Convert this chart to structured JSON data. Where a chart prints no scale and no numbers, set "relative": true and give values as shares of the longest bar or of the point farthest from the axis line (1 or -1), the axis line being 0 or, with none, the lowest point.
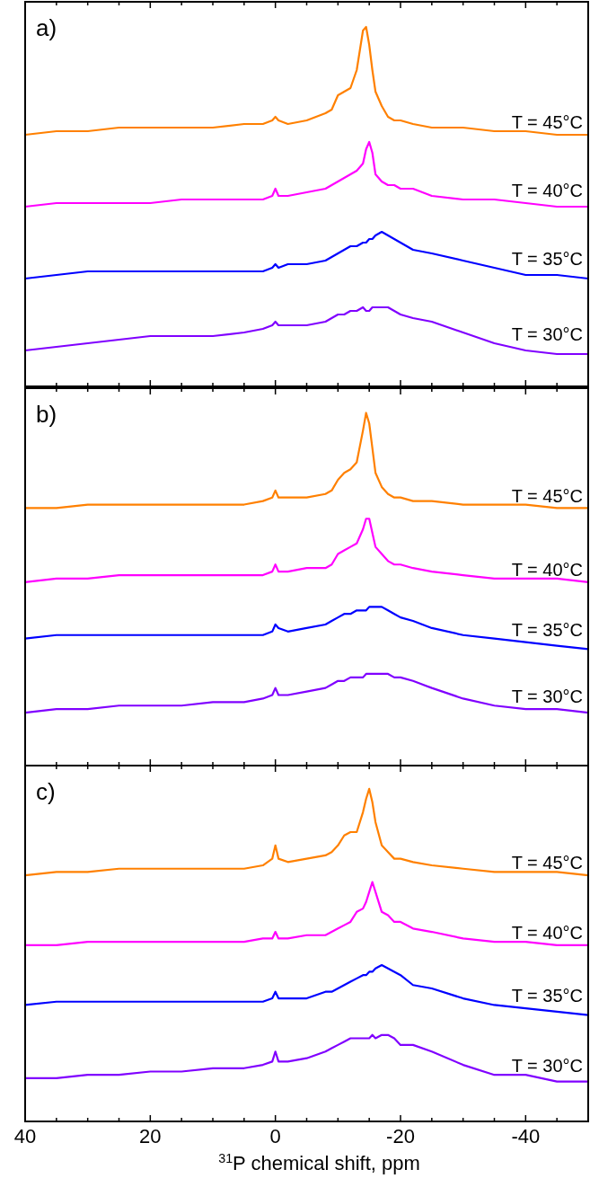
{
  "chart_data": [
    {
      "type": "line",
      "title": "a)",
      "relative": true,
      "tick_labels": false,
      "xlim": [
        40,
        -50
      ],
      "xticks": [
        40,
        {
          "value": 35,
          "label": null
        },
        {
          "value": 30,
          "label": null
        },
        {
          "value": 25,
          "label": null
        },
        20,
        {
          "value": 15,
          "label": null
        },
        {
          "value": 10,
          "label": null
        },
        {
          "value": 5,
          "label": null
        },
        0,
        {
          "value": -5,
          "label": null
        },
        {
          "value": -10,
          "label": null
        },
        {
          "value": -15,
          "label": null
        },
        -20,
        {
          "value": -25,
          "label": null
        },
        {
          "value": -30,
          "label": null
        },
        {
          "value": -35,
          "label": null
        },
        -40,
        {
          "value": -45,
          "label": null
        }
      ],
      "x": [
        40,
        35,
        30,
        25,
        20,
        15,
        10,
        5,
        2,
        0.5,
        0,
        -0.5,
        -2,
        -5,
        -8,
        -9,
        -10,
        -11,
        -12,
        -13,
        -14,
        -14.5,
        -15,
        -15.5,
        -16,
        -17,
        -18,
        -19,
        -20,
        -22,
        -25,
        -30,
        -35,
        -40,
        -45,
        -50
      ],
      "series": [
        {
          "name": "T = 45°C",
          "color": "#ff8000",
          "values": [
            0.7,
            0.71,
            0.71,
            0.72,
            0.72,
            0.72,
            0.72,
            0.73,
            0.73,
            0.74,
            0.75,
            0.74,
            0.73,
            0.74,
            0.76,
            0.77,
            0.81,
            0.82,
            0.83,
            0.88,
            0.99,
            1,
            0.95,
            0.88,
            0.82,
            0.78,
            0.75,
            0.74,
            0.74,
            0.73,
            0.72,
            0.72,
            0.71,
            0.71,
            0.7,
            0.7
          ]
        },
        {
          "name": "T = 40°C",
          "color": "#ff00ff",
          "values": [
            0.5,
            0.51,
            0.51,
            0.51,
            0.51,
            0.52,
            0.52,
            0.52,
            0.52,
            0.53,
            0.55,
            0.53,
            0.53,
            0.54,
            0.55,
            0.56,
            0.57,
            0.58,
            0.59,
            0.6,
            0.62,
            0.66,
            0.68,
            0.65,
            0.59,
            0.57,
            0.56,
            0.56,
            0.55,
            0.55,
            0.53,
            0.52,
            0.52,
            0.51,
            0.5,
            0.5
          ]
        },
        {
          "name": "T = 35°C",
          "color": "#0000ff",
          "values": [
            0.3,
            0.31,
            0.32,
            0.32,
            0.32,
            0.32,
            0.32,
            0.32,
            0.32,
            0.33,
            0.34,
            0.33,
            0.34,
            0.34,
            0.35,
            0.36,
            0.37,
            0.38,
            0.39,
            0.39,
            0.4,
            0.4,
            0.41,
            0.41,
            0.42,
            0.43,
            0.42,
            0.41,
            0.4,
            0.38,
            0.37,
            0.35,
            0.33,
            0.31,
            0.31,
            0.3
          ]
        },
        {
          "name": "T = 30°C",
          "color": "#8000ff",
          "values": [
            0.1,
            0.11,
            0.12,
            0.13,
            0.14,
            0.14,
            0.14,
            0.15,
            0.16,
            0.17,
            0.18,
            0.17,
            0.17,
            0.17,
            0.18,
            0.19,
            0.2,
            0.2,
            0.21,
            0.21,
            0.22,
            0.21,
            0.21,
            0.22,
            0.22,
            0.22,
            0.22,
            0.21,
            0.2,
            0.19,
            0.18,
            0.15,
            0.12,
            0.1,
            0.09,
            0.09
          ]
        }
      ]
    },
    {
      "type": "line",
      "title": "b)",
      "relative": true,
      "tick_labels": false,
      "xlim": [
        40,
        -50
      ],
      "xticks": [
        40,
        {
          "value": 35,
          "label": null
        },
        {
          "value": 30,
          "label": null
        },
        {
          "value": 25,
          "label": null
        },
        20,
        {
          "value": 15,
          "label": null
        },
        {
          "value": 10,
          "label": null
        },
        {
          "value": 5,
          "label": null
        },
        0,
        {
          "value": -5,
          "label": null
        },
        {
          "value": -10,
          "label": null
        },
        {
          "value": -15,
          "label": null
        },
        -20,
        {
          "value": -25,
          "label": null
        },
        {
          "value": -30,
          "label": null
        },
        {
          "value": -35,
          "label": null
        },
        -40,
        {
          "value": -45,
          "label": null
        }
      ],
      "x": [
        40,
        35,
        30,
        25,
        20,
        15,
        10,
        5,
        2,
        0.5,
        0,
        -0.5,
        -2,
        -5,
        -8,
        -9,
        -10,
        -11,
        -12,
        -13,
        -14,
        -14.5,
        -15,
        -15.5,
        -16,
        -17,
        -18,
        -19,
        -20,
        -22,
        -25,
        -30,
        -35,
        -40,
        -45,
        -50
      ],
      "series": [
        {
          "name": "T = 45°C",
          "color": "#ff8000",
          "values": [
            0.73,
            0.73,
            0.74,
            0.74,
            0.74,
            0.74,
            0.74,
            0.74,
            0.75,
            0.76,
            0.78,
            0.76,
            0.76,
            0.76,
            0.77,
            0.78,
            0.81,
            0.83,
            0.84,
            0.86,
            0.95,
            1,
            0.97,
            0.9,
            0.83,
            0.79,
            0.77,
            0.76,
            0.76,
            0.75,
            0.75,
            0.74,
            0.74,
            0.74,
            0.73,
            0.73
          ]
        },
        {
          "name": "T = 40°C",
          "color": "#ff00ff",
          "values": [
            0.52,
            0.53,
            0.53,
            0.54,
            0.54,
            0.54,
            0.54,
            0.54,
            0.54,
            0.55,
            0.57,
            0.55,
            0.55,
            0.56,
            0.56,
            0.57,
            0.6,
            0.61,
            0.62,
            0.63,
            0.67,
            0.7,
            0.7,
            0.66,
            0.62,
            0.6,
            0.58,
            0.57,
            0.57,
            0.56,
            0.55,
            0.54,
            0.53,
            0.53,
            0.53,
            0.52
          ]
        },
        {
          "name": "T = 35°C",
          "color": "#0000ff",
          "values": [
            0.36,
            0.37,
            0.37,
            0.37,
            0.37,
            0.37,
            0.37,
            0.37,
            0.37,
            0.38,
            0.4,
            0.39,
            0.38,
            0.39,
            0.4,
            0.41,
            0.42,
            0.43,
            0.43,
            0.44,
            0.44,
            0.44,
            0.45,
            0.45,
            0.45,
            0.45,
            0.44,
            0.43,
            0.42,
            0.41,
            0.39,
            0.37,
            0.36,
            0.35,
            0.34,
            0.33
          ]
        },
        {
          "name": "T = 30°C",
          "color": "#8000ff",
          "values": [
            0.15,
            0.16,
            0.16,
            0.17,
            0.17,
            0.17,
            0.18,
            0.18,
            0.19,
            0.2,
            0.22,
            0.2,
            0.2,
            0.21,
            0.22,
            0.23,
            0.24,
            0.24,
            0.25,
            0.25,
            0.25,
            0.26,
            0.26,
            0.26,
            0.26,
            0.26,
            0.26,
            0.25,
            0.25,
            0.24,
            0.22,
            0.19,
            0.17,
            0.16,
            0.16,
            0.15
          ]
        }
      ]
    },
    {
      "type": "line",
      "title": "c)",
      "xlabel": "$^{31}$P chemical shift, ppm",
      "relative": true,
      "tick_labels": "x",
      "xlim": [
        40,
        -50
      ],
      "xticks": [
        40,
        {
          "value": 35,
          "label": null
        },
        {
          "value": 30,
          "label": null
        },
        {
          "value": 25,
          "label": null
        },
        20,
        {
          "value": 15,
          "label": null
        },
        {
          "value": 10,
          "label": null
        },
        {
          "value": 5,
          "label": null
        },
        0,
        {
          "value": -5,
          "label": null
        },
        {
          "value": -10,
          "label": null
        },
        {
          "value": -15,
          "label": null
        },
        -20,
        {
          "value": -25,
          "label": null
        },
        {
          "value": -30,
          "label": null
        },
        {
          "value": -35,
          "label": null
        },
        -40,
        {
          "value": -45,
          "label": null
        }
      ],
      "x": [
        40,
        35,
        30,
        25,
        20,
        15,
        10,
        5,
        2,
        0.5,
        0,
        -0.5,
        -2,
        -5,
        -8,
        -9,
        -10,
        -11,
        -12,
        -13,
        -14,
        -14.5,
        -15,
        -15.5,
        -16,
        -17,
        -18,
        -19,
        -20,
        -22,
        -25,
        -30,
        -35,
        -40,
        -45,
        -50
      ],
      "series": [
        {
          "name": "T = 45°C",
          "color": "#ff8000",
          "values": [
            0.74,
            0.75,
            0.75,
            0.76,
            0.76,
            0.76,
            0.76,
            0.76,
            0.77,
            0.79,
            0.83,
            0.79,
            0.78,
            0.79,
            0.8,
            0.81,
            0.83,
            0.86,
            0.87,
            0.87,
            0.93,
            0.97,
            1,
            0.96,
            0.9,
            0.83,
            0.81,
            0.79,
            0.79,
            0.78,
            0.77,
            0.76,
            0.75,
            0.75,
            0.75,
            0.74
          ]
        },
        {
          "name": "T = 40°C",
          "color": "#ff00ff",
          "values": [
            0.53,
            0.53,
            0.54,
            0.54,
            0.54,
            0.54,
            0.54,
            0.54,
            0.55,
            0.55,
            0.57,
            0.55,
            0.55,
            0.56,
            0.56,
            0.57,
            0.58,
            0.59,
            0.6,
            0.63,
            0.64,
            0.66,
            0.69,
            0.72,
            0.69,
            0.63,
            0.62,
            0.6,
            0.6,
            0.58,
            0.57,
            0.55,
            0.54,
            0.54,
            0.53,
            0.53
          ]
        },
        {
          "name": "T = 35°C",
          "color": "#0000ff",
          "values": [
            0.35,
            0.36,
            0.36,
            0.36,
            0.36,
            0.36,
            0.36,
            0.36,
            0.36,
            0.37,
            0.39,
            0.37,
            0.37,
            0.37,
            0.39,
            0.39,
            0.4,
            0.41,
            0.42,
            0.43,
            0.44,
            0.44,
            0.45,
            0.45,
            0.46,
            0.47,
            0.46,
            0.45,
            0.44,
            0.41,
            0.4,
            0.37,
            0.35,
            0.34,
            0.33,
            0.32
          ]
        },
        {
          "name": "T = 30°C",
          "color": "#8000ff",
          "values": [
            0.13,
            0.13,
            0.14,
            0.14,
            0.15,
            0.15,
            0.16,
            0.16,
            0.17,
            0.18,
            0.21,
            0.18,
            0.18,
            0.19,
            0.21,
            0.22,
            0.23,
            0.24,
            0.25,
            0.25,
            0.25,
            0.25,
            0.25,
            0.26,
            0.25,
            0.26,
            0.26,
            0.25,
            0.23,
            0.23,
            0.21,
            0.17,
            0.14,
            0.14,
            0.12,
            0.12
          ]
        }
      ]
    }
  ]
}
